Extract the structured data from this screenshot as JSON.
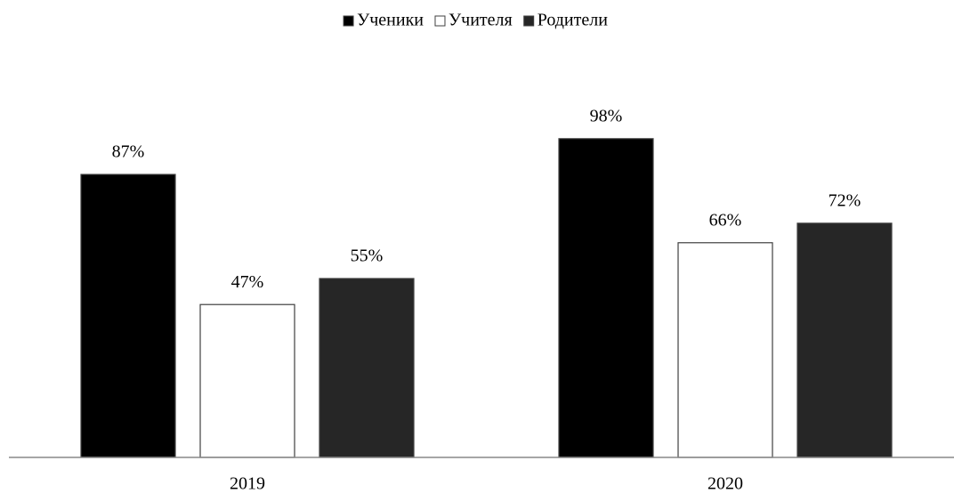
{
  "chart_data": {
    "type": "bar",
    "categories": [
      "2019",
      "2020"
    ],
    "series": [
      {
        "name": "Ученики",
        "color": "#000000",
        "values": [
          87,
          98
        ],
        "value_labels": [
          "87%",
          "98%"
        ]
      },
      {
        "name": "Учителя",
        "color": "#ffffff",
        "values": [
          47,
          66
        ],
        "value_labels": [
          "47%",
          "66%"
        ]
      },
      {
        "name": "Родители",
        "color": "#262626",
        "values": [
          55,
          72
        ],
        "value_labels": [
          "55%",
          "72%"
        ]
      }
    ]
  }
}
